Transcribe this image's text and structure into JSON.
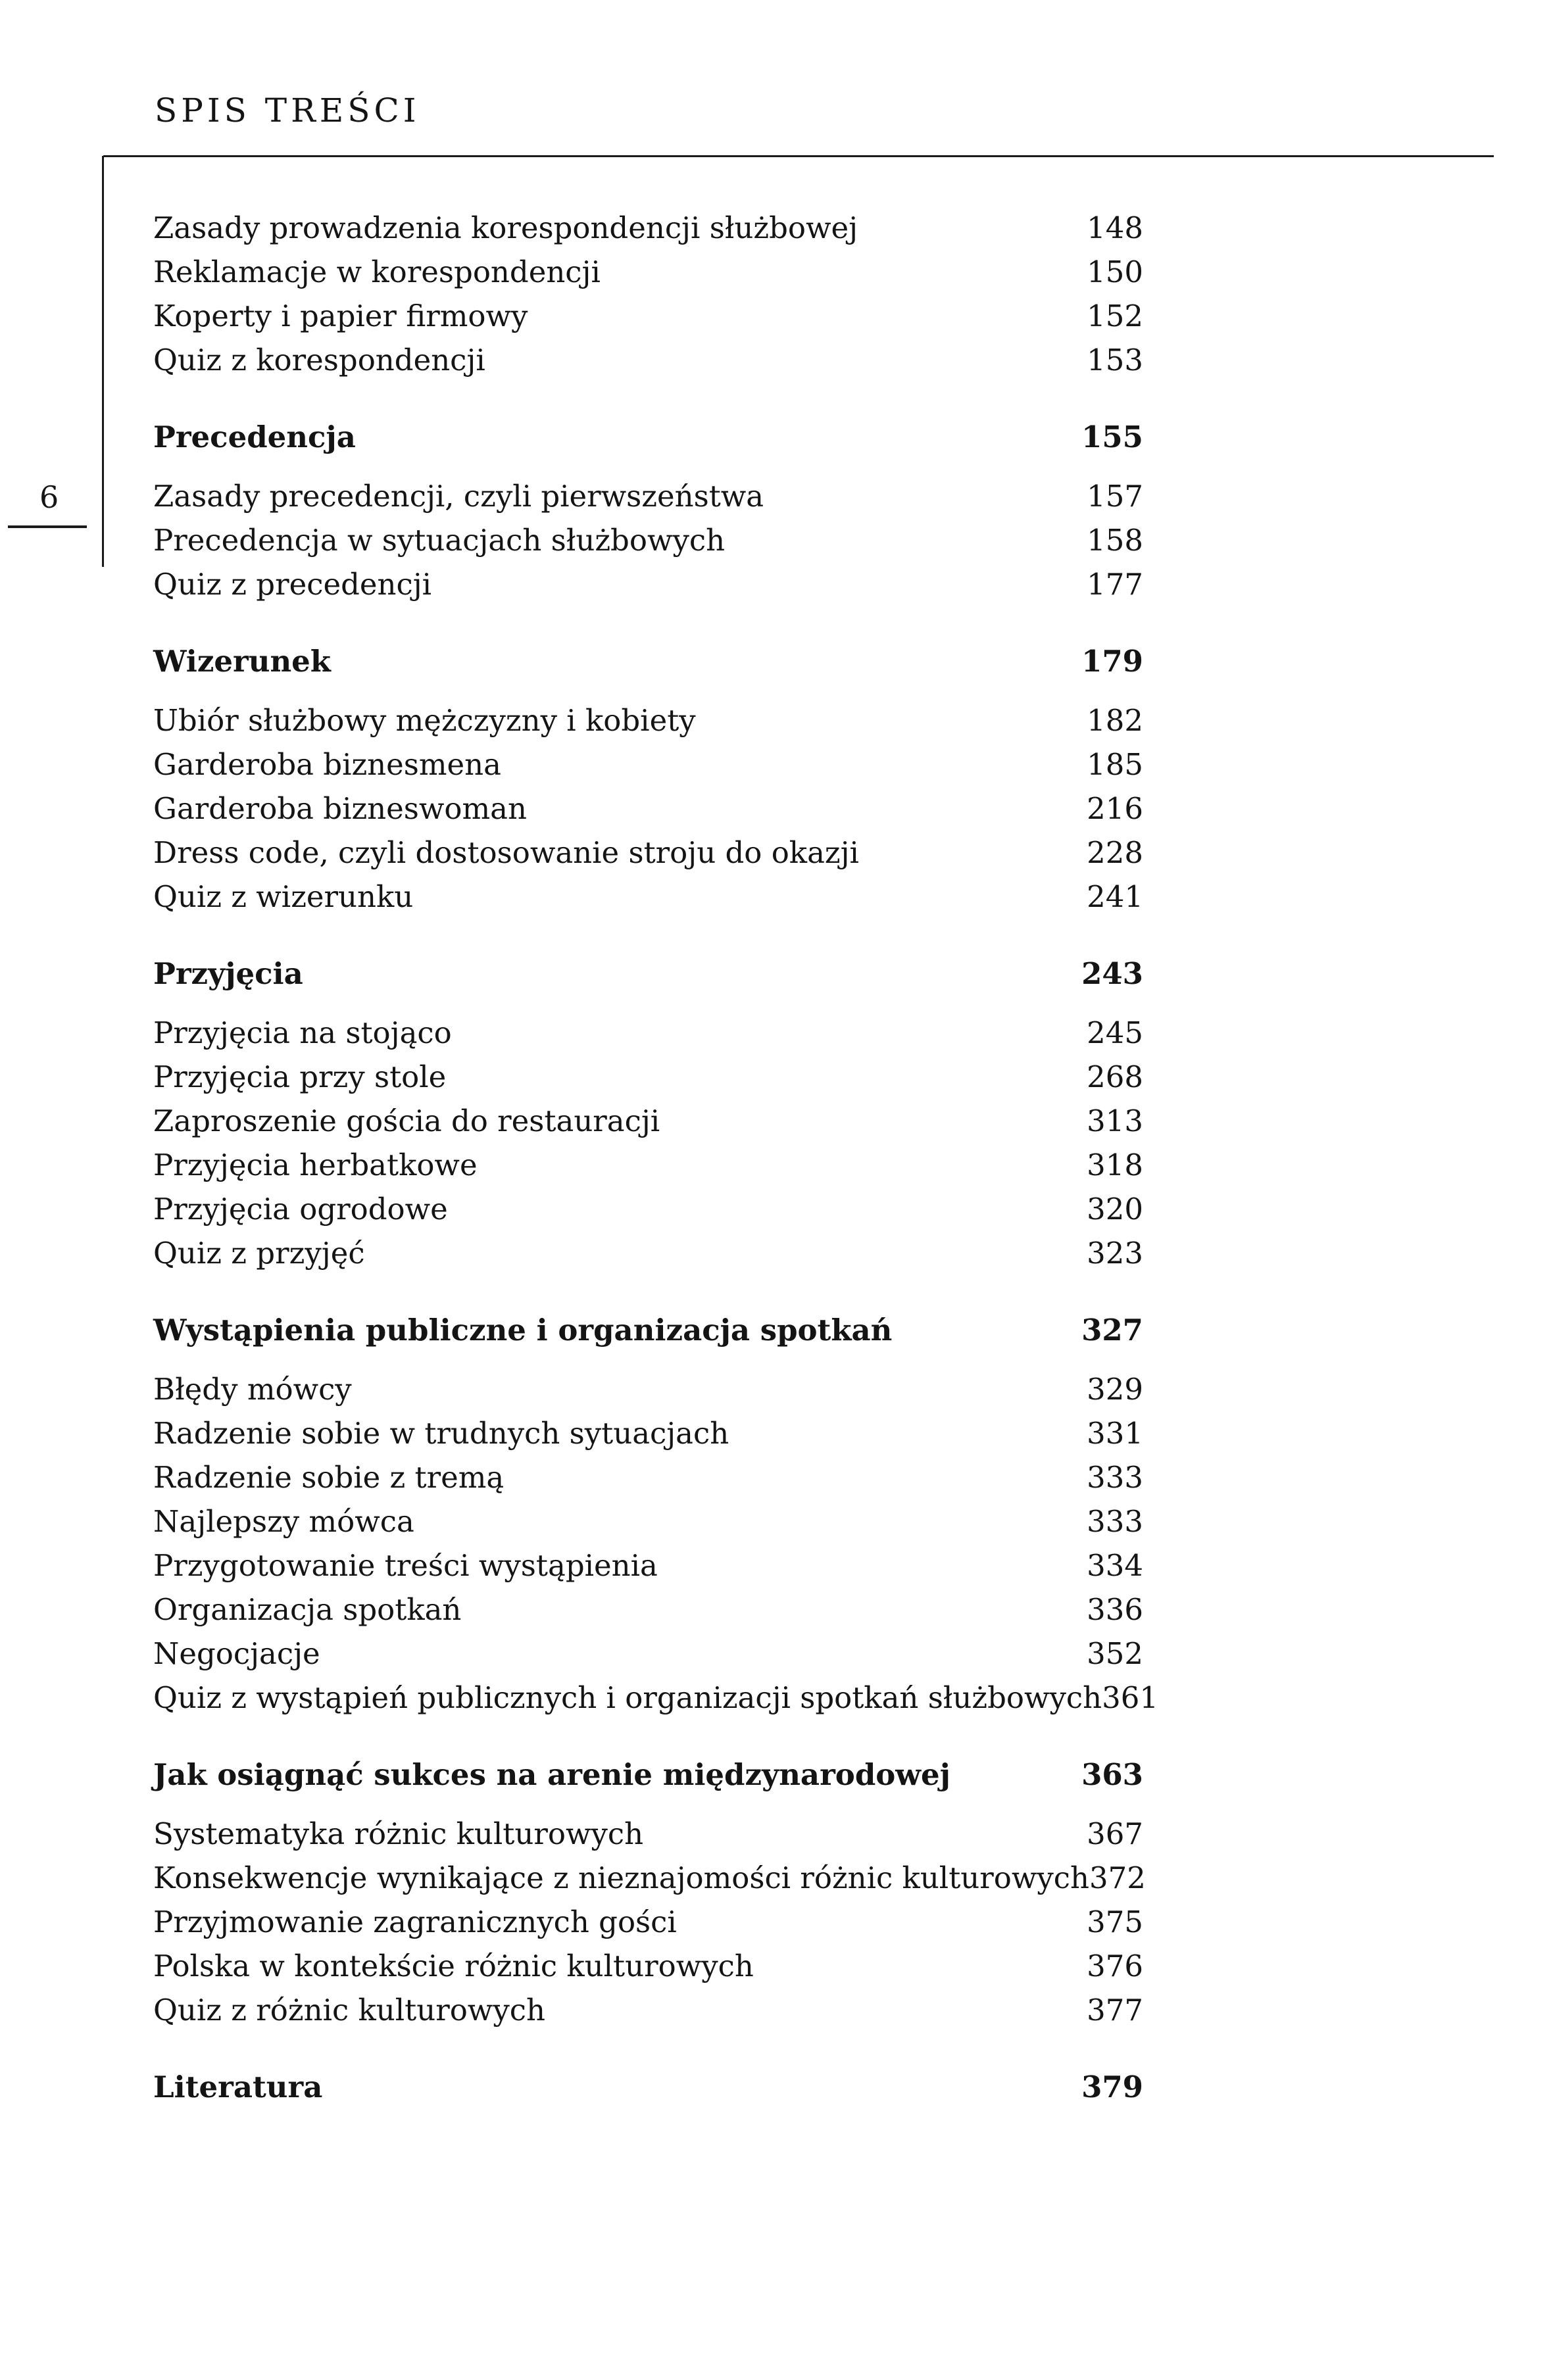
{
  "header": {
    "title": "SPIS TREŚCI"
  },
  "page_number": "6",
  "sections": [
    {
      "heading": null,
      "items": [
        {
          "label": "Zasady prowadzenia korespondencji służbowej",
          "page": "148"
        },
        {
          "label": "Reklamacje w korespondencji",
          "page": "150"
        },
        {
          "label": "Koperty i papier firmowy",
          "page": "152"
        },
        {
          "label": "Quiz z korespondencji",
          "page": "153"
        }
      ]
    },
    {
      "heading": {
        "label": "Precedencja",
        "page": "155"
      },
      "items": [
        {
          "label": "Zasady precedencji, czyli pierwszeństwa",
          "page": "157"
        },
        {
          "label": "Precedencja w sytuacjach służbowych",
          "page": "158"
        },
        {
          "label": "Quiz z precedencji",
          "page": "177"
        }
      ]
    },
    {
      "heading": {
        "label": "Wizerunek",
        "page": "179"
      },
      "items": [
        {
          "label": "Ubiór służbowy mężczyzny i kobiety",
          "page": "182"
        },
        {
          "label": "Garderoba biznesmena",
          "page": "185"
        },
        {
          "label": "Garderoba bizneswoman",
          "page": "216"
        },
        {
          "label": "Dress code, czyli dostosowanie stroju do okazji",
          "page": "228"
        },
        {
          "label": "Quiz z wizerunku",
          "page": "241"
        }
      ]
    },
    {
      "heading": {
        "label": "Przyjęcia",
        "page": "243"
      },
      "items": [
        {
          "label": "Przyjęcia na stojąco",
          "page": "245"
        },
        {
          "label": "Przyjęcia przy stole",
          "page": "268"
        },
        {
          "label": "Zaproszenie gościa do restauracji",
          "page": "313"
        },
        {
          "label": "Przyjęcia herbatkowe",
          "page": "318"
        },
        {
          "label": "Przyjęcia ogrodowe",
          "page": "320"
        },
        {
          "label": "Quiz z przyjęć",
          "page": "323"
        }
      ]
    },
    {
      "heading": {
        "label": "Wystąpienia publiczne i organizacja spotkań",
        "page": "327"
      },
      "items": [
        {
          "label": "Błędy mówcy",
          "page": "329"
        },
        {
          "label": "Radzenie sobie w trudnych sytuacjach",
          "page": "331"
        },
        {
          "label": "Radzenie sobie z tremą",
          "page": "333"
        },
        {
          "label": "Najlepszy mówca",
          "page": "333"
        },
        {
          "label": "Przygotowanie treści wystąpienia",
          "page": "334"
        },
        {
          "label": "Organizacja spotkań",
          "page": "336"
        },
        {
          "label": "Negocjacje",
          "page": "352"
        },
        {
          "label": "Quiz z wystąpień publicznych i organizacji spotkań służbowych",
          "page": "361"
        }
      ]
    },
    {
      "heading": {
        "label": "Jak osiągnąć sukces na arenie międzynarodowej",
        "page": "363"
      },
      "items": [
        {
          "label": "Systematyka różnic kulturowych",
          "page": "367"
        },
        {
          "label": "Konsekwencje wynikające z nieznajomości różnic kulturowych",
          "page": "372"
        },
        {
          "label": "Przyjmowanie zagranicznych gości",
          "page": "375"
        },
        {
          "label": "Polska w kontekście różnic kulturowych",
          "page": "376"
        },
        {
          "label": "Quiz z różnic kulturowych",
          "page": "377"
        }
      ]
    },
    {
      "heading": {
        "label": "Literatura",
        "page": "379"
      },
      "items": []
    }
  ]
}
